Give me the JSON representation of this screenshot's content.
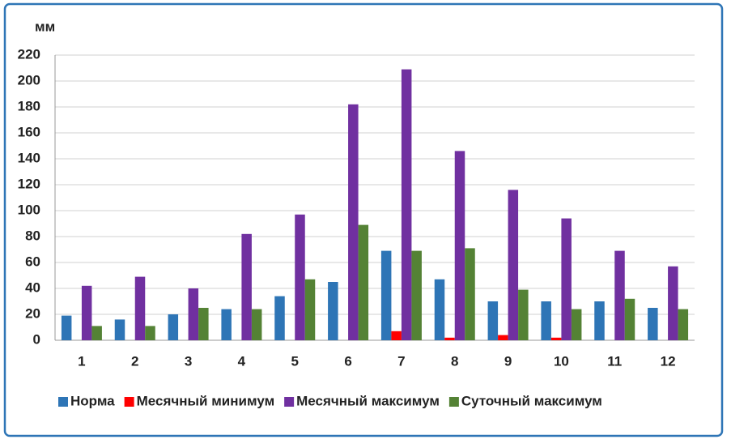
{
  "chart_data": {
    "type": "bar",
    "y_label": "мм",
    "categories": [
      "1",
      "2",
      "3",
      "4",
      "5",
      "6",
      "7",
      "8",
      "9",
      "10",
      "11",
      "12"
    ],
    "series": [
      {
        "name": "Норма",
        "color": "#2e75b6",
        "values": [
          19,
          16,
          20,
          24,
          34,
          45,
          69,
          47,
          30,
          30,
          30,
          25
        ]
      },
      {
        "name": "Месячный минимум",
        "color": "#ff0000",
        "values": [
          0,
          0,
          0,
          0,
          0,
          0,
          7,
          2,
          4,
          2,
          0,
          0
        ]
      },
      {
        "name": "Месячный максимум",
        "color": "#7030a0",
        "values": [
          42,
          49,
          40,
          82,
          97,
          182,
          209,
          146,
          116,
          94,
          69,
          57
        ]
      },
      {
        "name": "Суточный максимум",
        "color": "#548235",
        "values": [
          11,
          11,
          25,
          24,
          47,
          89,
          69,
          71,
          39,
          24,
          32,
          24
        ]
      }
    ],
    "ylim": [
      0,
      220
    ],
    "yticks": [
      0,
      20,
      40,
      60,
      80,
      100,
      120,
      140,
      160,
      180,
      200,
      220
    ],
    "grid": true,
    "legend": "bottom"
  }
}
